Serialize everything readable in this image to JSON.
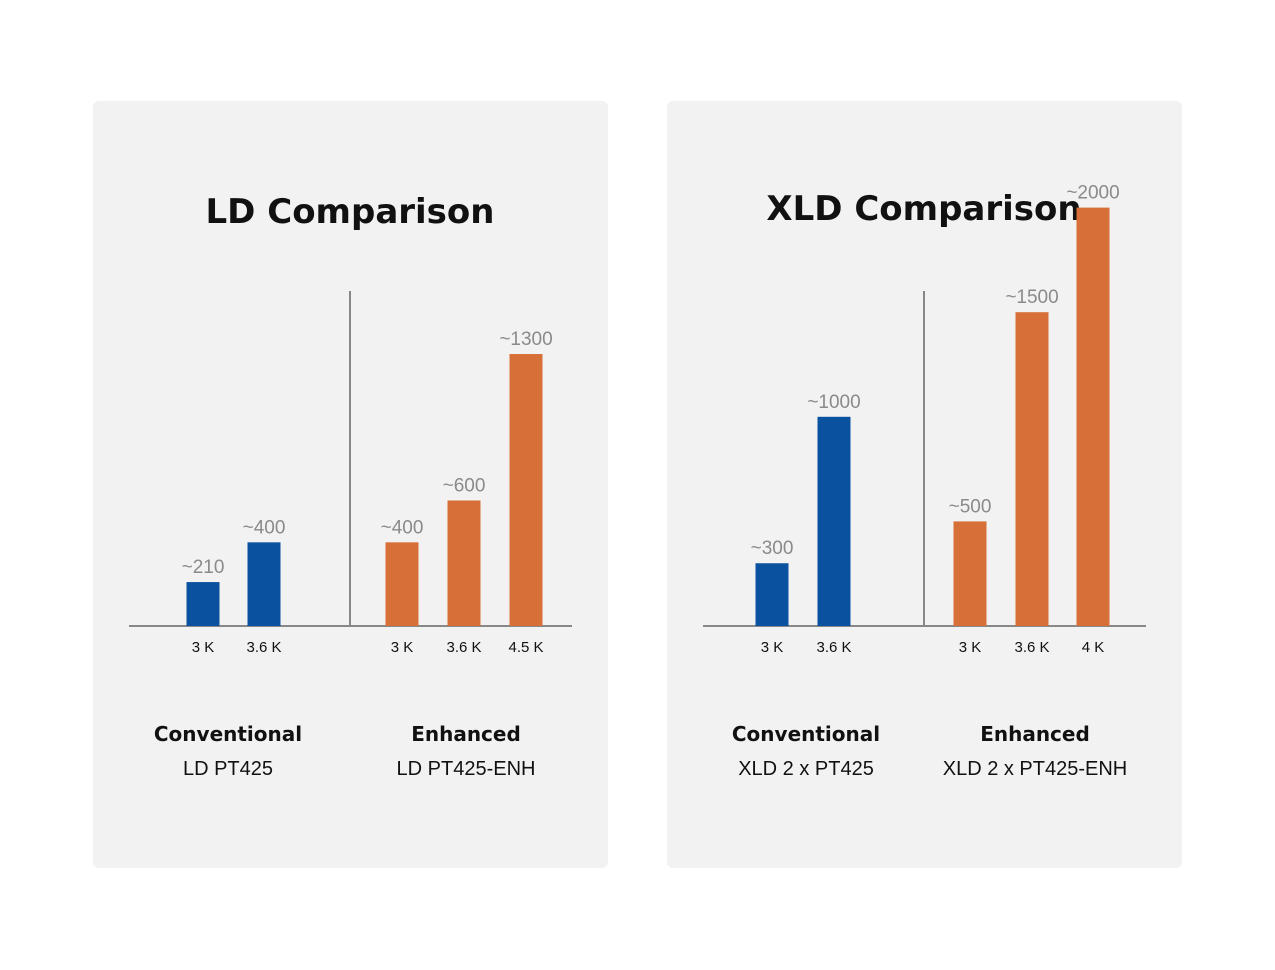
{
  "chart_data": [
    {
      "type": "bar",
      "title": "LD Comparison",
      "ylim": [
        0,
        2150
      ],
      "colors": {
        "conventional": "#0a52a0",
        "enhanced": "#d67038",
        "axis": "#888888"
      },
      "groups": [
        {
          "name": "Conventional",
          "model": "LD PT425",
          "series": "conventional",
          "categories": [
            "3 K",
            "3.6 K"
          ],
          "values": [
            210,
            400
          ],
          "labels": [
            "~210",
            "~400"
          ]
        },
        {
          "name": "Enhanced",
          "model": "LD PT425-ENH",
          "series": "enhanced",
          "categories": [
            "3 K",
            "3.6 K",
            "4.5 K"
          ],
          "values": [
            400,
            600,
            1300
          ],
          "labels": [
            "~400",
            "~600",
            "~1300"
          ]
        }
      ]
    },
    {
      "type": "bar",
      "title": "XLD Comparison",
      "ylim": [
        0,
        2150
      ],
      "colors": {
        "conventional": "#0a52a0",
        "enhanced": "#d67038",
        "axis": "#888888"
      },
      "groups": [
        {
          "name": "Conventional",
          "model": "XLD 2 x PT425",
          "series": "conventional",
          "categories": [
            "3 K",
            "3.6 K"
          ],
          "values": [
            300,
            1000
          ],
          "labels": [
            "~300",
            "~1000"
          ]
        },
        {
          "name": "Enhanced",
          "model": "XLD 2 x PT425-ENH",
          "series": "enhanced",
          "categories": [
            "3 K",
            "3.6 K",
            "4 K"
          ],
          "values": [
            500,
            1500,
            2000
          ],
          "labels": [
            "~500",
            "~1500",
            "~2000"
          ]
        }
      ]
    }
  ]
}
